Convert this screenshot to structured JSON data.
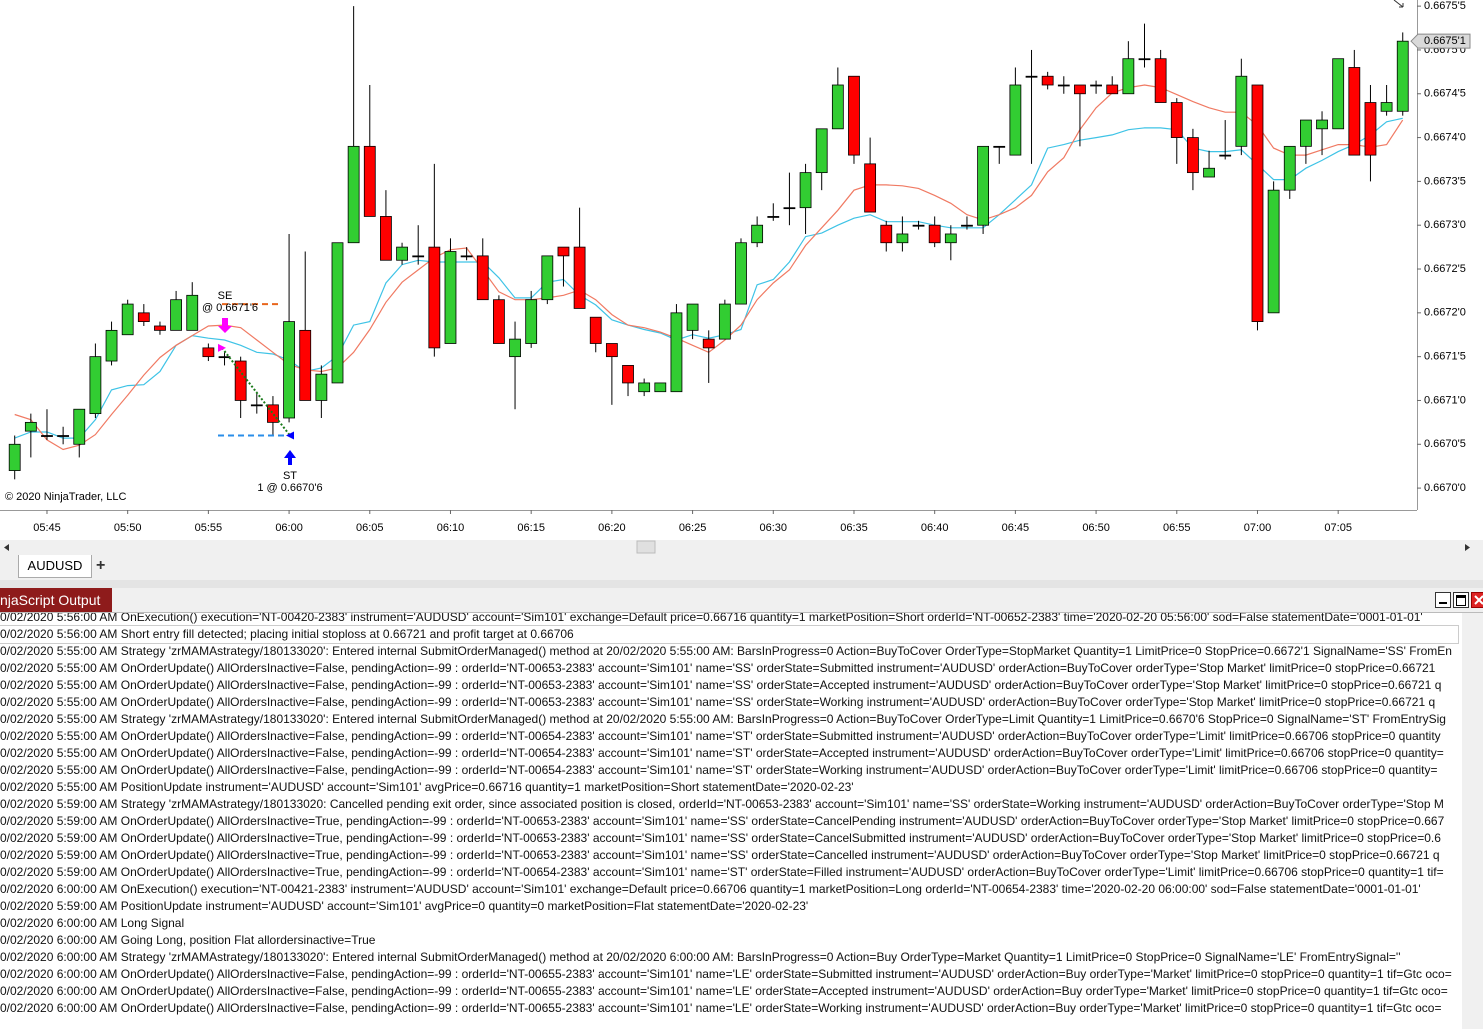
{
  "chart_data": {
    "type": "candlestick",
    "copyright": "© 2020 NinjaTrader, LLC",
    "categories": [
      null,
      null,
      "05:45",
      null,
      null,
      null,
      null,
      "05:50",
      null,
      null,
      null,
      null,
      "05:55",
      null,
      null,
      null,
      null,
      "06:00",
      null,
      null,
      null,
      null,
      "06:05",
      null,
      null,
      null,
      null,
      "06:10",
      null,
      null,
      null,
      null,
      "06:15",
      null,
      null,
      null,
      null,
      "06:20",
      null,
      null,
      null,
      null,
      "06:25",
      null,
      null,
      null,
      null,
      "06:30",
      null,
      null,
      null,
      null,
      "06:35",
      null,
      null,
      null,
      null,
      "06:40",
      null,
      null,
      null,
      null,
      "06:45",
      null,
      null,
      null,
      null,
      "06:50",
      null,
      null,
      null,
      null,
      "06:55",
      null,
      null,
      null,
      null,
      "07:00",
      null,
      null,
      null,
      null,
      "07:05",
      null,
      null,
      null,
      null
    ],
    "open": [
      0.66702,
      0.667065,
      0.66706,
      0.66706,
      0.66705,
      0.667085,
      0.667145,
      0.667175,
      0.6672,
      0.667185,
      0.66718,
      0.66718,
      0.66716,
      0.66715,
      0.667145,
      0.667095,
      0.667095,
      0.66708,
      0.66718,
      0.6671,
      0.66712,
      0.66728,
      0.66739,
      0.66731,
      0.66726,
      0.667265,
      0.667275,
      0.667165,
      0.667265,
      0.667265,
      0.667215,
      0.66715,
      0.667165,
      0.667215,
      0.667275,
      0.667275,
      0.667195,
      0.667165,
      0.66714,
      0.66711,
      0.66711,
      0.66711,
      0.66718,
      0.66717,
      0.66717,
      0.66721,
      0.66728,
      0.66731,
      0.66732,
      0.66732,
      0.66736,
      0.66741,
      0.66747,
      0.66737,
      0.6673,
      0.66728,
      0.6673,
      0.6673,
      0.66728,
      0.6673,
      0.6673,
      0.66739,
      0.66738,
      0.66747,
      0.66747,
      0.66746,
      0.66746,
      0.66746,
      0.66746,
      0.66745,
      0.66749,
      0.66749,
      0.66744,
      0.6674,
      0.667355,
      0.66738,
      0.66739,
      0.66746,
      0.6672,
      0.66734,
      0.66739,
      0.66741,
      0.66741,
      0.66748,
      0.66744,
      0.66743,
      0.66743
    ],
    "high": [
      0.66706,
      0.667085,
      0.66709,
      0.66707,
      0.66709,
      0.667165,
      0.66719,
      0.667215,
      0.66721,
      0.66719,
      0.667225,
      0.667235,
      0.667165,
      0.667155,
      0.66715,
      0.66711,
      0.667105,
      0.66729,
      0.66727,
      0.66714,
      0.66728,
      0.66755,
      0.66746,
      0.66734,
      0.66728,
      0.6673,
      0.66737,
      0.667285,
      0.667275,
      0.667285,
      0.66722,
      0.66719,
      0.667225,
      0.667265,
      0.667275,
      0.66732,
      0.667195,
      0.667165,
      0.66714,
      0.667125,
      0.66712,
      0.66721,
      0.66721,
      0.66718,
      0.667215,
      0.667285,
      0.66731,
      0.667325,
      0.66736,
      0.66737,
      0.66741,
      0.66748,
      0.66747,
      0.6674,
      0.667305,
      0.66731,
      0.667305,
      0.66731,
      0.6673,
      0.66731,
      0.66739,
      0.66739,
      0.66748,
      0.6675,
      0.667475,
      0.66747,
      0.66746,
      0.667465,
      0.66747,
      0.66751,
      0.66753,
      0.6675,
      0.667445,
      0.66741,
      0.667385,
      0.66742,
      0.66749,
      0.66746,
      0.66735,
      0.66739,
      0.66742,
      0.66743,
      0.66749,
      0.6675,
      0.66746,
      0.66746,
      0.66752
    ],
    "low": [
      0.66701,
      0.667035,
      0.667055,
      0.66705,
      0.667035,
      0.66708,
      0.66714,
      0.667175,
      0.667185,
      0.667175,
      0.66718,
      0.66718,
      0.667145,
      0.66714,
      0.66708,
      0.667085,
      0.66706,
      0.667075,
      0.6671,
      0.66708,
      0.66712,
      0.66728,
      0.66731,
      0.66726,
      0.667255,
      0.667255,
      0.66715,
      0.667165,
      0.66726,
      0.667215,
      0.667165,
      0.66709,
      0.66716,
      0.66721,
      0.66723,
      0.667205,
      0.667155,
      0.667095,
      0.667105,
      0.667105,
      0.66711,
      0.66711,
      0.66717,
      0.66712,
      0.66717,
      0.66721,
      0.667275,
      0.667305,
      0.6673,
      0.66729,
      0.66734,
      0.66741,
      0.66737,
      0.667315,
      0.66727,
      0.66727,
      0.667295,
      0.667275,
      0.66726,
      0.667295,
      0.66729,
      0.66737,
      0.66738,
      0.66737,
      0.667455,
      0.66745,
      0.66739,
      0.66745,
      0.66745,
      0.66745,
      0.66748,
      0.66744,
      0.66737,
      0.66734,
      0.667355,
      0.667375,
      0.66738,
      0.66718,
      0.6672,
      0.66733,
      0.66737,
      0.66738,
      0.66741,
      0.66738,
      0.66735,
      0.667425,
      0.667425
    ],
    "close": [
      0.66705,
      0.667075,
      0.66706,
      0.66706,
      0.66709,
      0.66715,
      0.66718,
      0.66721,
      0.66719,
      0.66718,
      0.667215,
      0.66722,
      0.66715,
      0.66715,
      0.6671,
      0.667095,
      0.667075,
      0.66719,
      0.6671,
      0.66713,
      0.66728,
      0.66739,
      0.66731,
      0.66726,
      0.667275,
      0.667265,
      0.66716,
      0.66727,
      0.667265,
      0.667215,
      0.667165,
      0.66717,
      0.667215,
      0.667265,
      0.667265,
      0.667205,
      0.667165,
      0.66715,
      0.66712,
      0.66712,
      0.66712,
      0.6672,
      0.66721,
      0.66716,
      0.66721,
      0.66728,
      0.6673,
      0.66731,
      0.66732,
      0.66736,
      0.66741,
      0.66746,
      0.66738,
      0.667315,
      0.66728,
      0.66729,
      0.6673,
      0.66728,
      0.66729,
      0.6673,
      0.66739,
      0.66739,
      0.66746,
      0.66747,
      0.66746,
      0.66746,
      0.66745,
      0.66746,
      0.66745,
      0.66749,
      0.66749,
      0.66744,
      0.6674,
      0.66736,
      0.667365,
      0.66738,
      0.66747,
      0.66719,
      0.66734,
      0.66739,
      0.66742,
      0.66742,
      0.66749,
      0.66738,
      0.66738,
      0.66744,
      0.66751
    ],
    "up_color": "#32cd32",
    "down_color": "#ff0000",
    "series": [
      {
        "color": "#3ec3e6",
        "values": [
          0.667057,
          0.667064,
          0.667064,
          0.667057,
          0.667057,
          0.667078,
          0.667112,
          0.667117,
          0.667118,
          0.667133,
          0.667163,
          0.667174,
          0.667171,
          0.667169,
          0.667163,
          0.667155,
          0.667153,
          0.667146,
          0.667133,
          0.667137,
          0.667151,
          0.667186,
          0.66719,
          0.667234,
          0.667255,
          0.66726,
          0.667258,
          0.667258,
          0.667258,
          0.667258,
          0.66724,
          0.667217,
          0.667217,
          0.667235,
          0.667238,
          0.66722,
          0.667209,
          0.667192,
          0.667186,
          0.667181,
          0.667177,
          0.667169,
          0.667175,
          0.667171,
          0.667175,
          0.667181,
          0.667232,
          0.667238,
          0.667258,
          0.667287,
          0.667291,
          0.6673,
          0.667308,
          0.667312,
          0.667304,
          0.667304,
          0.667304,
          0.6673,
          0.667297,
          0.667297,
          0.667297,
          0.667312,
          0.667329,
          0.667346,
          0.667388,
          0.667392,
          0.667397,
          0.6674,
          0.667403,
          0.667409,
          0.667411,
          0.667411,
          0.667409,
          0.667388,
          0.667384,
          0.667384,
          0.667386,
          0.667369,
          0.667352,
          0.667352,
          0.667365,
          0.667374,
          0.667384,
          0.667392,
          0.667403,
          0.667418,
          0.667422
        ]
      },
      {
        "color": "#f07a63",
        "values": [
          0.667084,
          0.667078,
          0.667055,
          0.667044,
          0.667049,
          0.667061,
          0.667084,
          0.667106,
          0.667129,
          0.667149,
          0.667163,
          0.667174,
          0.667185,
          0.667186,
          0.667183,
          0.667169,
          0.667155,
          0.667141,
          0.667135,
          0.667133,
          0.667137,
          0.667155,
          0.667181,
          0.667212,
          0.667235,
          0.667249,
          0.667263,
          0.667272,
          0.667274,
          0.667249,
          0.667224,
          0.667215,
          0.667215,
          0.667217,
          0.66722,
          0.667226,
          0.667215,
          0.667198,
          0.667186,
          0.667183,
          0.667178,
          0.667171,
          0.667163,
          0.667155,
          0.667169,
          0.667186,
          0.667215,
          0.667234,
          0.667249,
          0.667277,
          0.667297,
          0.667317,
          0.66734,
          0.667346,
          0.667346,
          0.667345,
          0.667342,
          0.667334,
          0.667325,
          0.667312,
          0.667306,
          0.667312,
          0.66732,
          0.667334,
          0.667361,
          0.667377,
          0.667409,
          0.667434,
          0.667451,
          0.667457,
          0.66746,
          0.667457,
          0.667449,
          0.667441,
          0.667434,
          0.667429,
          0.667429,
          0.667414,
          0.667388,
          0.66738,
          0.66738,
          0.667386,
          0.667392,
          0.667392,
          0.667389,
          0.667392,
          0.66742
        ]
      }
    ],
    "ylim": [
      0.666975,
      0.667557
    ],
    "yticks": [
      {
        "value": 0.66755,
        "label": "0.6675'5"
      },
      {
        "value": 0.6675,
        "label": "0.6675'0"
      },
      {
        "value": 0.66745,
        "label": "0.6674'5"
      },
      {
        "value": 0.6674,
        "label": "0.6674'0"
      },
      {
        "value": 0.66735,
        "label": "0.6673'5"
      },
      {
        "value": 0.6673,
        "label": "0.6673'0"
      },
      {
        "value": 0.66725,
        "label": "0.6672'5"
      },
      {
        "value": 0.6672,
        "label": "0.6672'0"
      },
      {
        "value": 0.66715,
        "label": "0.6671'5"
      },
      {
        "value": 0.6671,
        "label": "0.6671'0"
      },
      {
        "value": 0.66705,
        "label": "0.6670'5"
      },
      {
        "value": 0.667,
        "label": "0.6670'0"
      }
    ],
    "last_price": {
      "value": 0.66751,
      "label": "0.6675'1"
    },
    "entry": {
      "signal": "SE",
      "price": 0.66716,
      "label": "@ 0.6671'6"
    },
    "exit": {
      "signal": "ST",
      "price": 0.66706,
      "label": "1 @ 0.6670'6"
    },
    "stop_level": 0.66721,
    "target_level": 0.66706
  },
  "tabs": {
    "instrument": "AUDUSD",
    "add": "+"
  },
  "output": {
    "title": "njaScript Output",
    "lines": [
      "0/02/2020 5:56:00 AM OnExecution() execution='NT-00420-2383' instrument='AUDUSD' account='Sim101' exchange=Default price=0.66716 quantity=1 marketPosition=Short orderId='NT-00652-2383' time='2020-02-20 05:56:00' sod=False statementDate='0001-01-01'",
      "0/02/2020 5:56:00 AM Short entry fill detected; placing initial stoploss at 0.66721 and profit target at 0.66706",
      "0/02/2020 5:55:00 AM Strategy 'zrMAMAstrategy/180133020': Entered internal SubmitOrderManaged() method at 20/02/2020 5:55:00 AM: BarsInProgress=0 Action=BuyToCover OrderType=StopMarket Quantity=1 LimitPrice=0 StopPrice=0.6672'1 SignalName='SS' FromEn",
      "0/02/2020 5:55:00 AM OnOrderUpdate() AllOrdersInactive=False, pendingAction=-99 : orderId='NT-00653-2383' account='Sim101' name='SS' orderState=Submitted instrument='AUDUSD' orderAction=BuyToCover orderType='Stop Market' limitPrice=0 stopPrice=0.66721",
      "0/02/2020 5:55:00 AM OnOrderUpdate() AllOrdersInactive=False, pendingAction=-99 : orderId='NT-00653-2383' account='Sim101' name='SS' orderState=Accepted instrument='AUDUSD' orderAction=BuyToCover orderType='Stop Market' limitPrice=0 stopPrice=0.66721 q",
      "0/02/2020 5:55:00 AM OnOrderUpdate() AllOrdersInactive=False, pendingAction=-99 : orderId='NT-00653-2383' account='Sim101' name='SS' orderState=Working instrument='AUDUSD' orderAction=BuyToCover orderType='Stop Market' limitPrice=0 stopPrice=0.66721 q",
      "0/02/2020 5:55:00 AM Strategy 'zrMAMAstrategy/180133020': Entered internal SubmitOrderManaged() method at 20/02/2020 5:55:00 AM: BarsInProgress=0 Action=BuyToCover OrderType=Limit Quantity=1 LimitPrice=0.6670'6 StopPrice=0 SignalName='ST' FromEntrySig",
      "0/02/2020 5:55:00 AM OnOrderUpdate() AllOrdersInactive=False, pendingAction=-99 : orderId='NT-00654-2383' account='Sim101' name='ST' orderState=Submitted instrument='AUDUSD' orderAction=BuyToCover orderType='Limit' limitPrice=0.66706 stopPrice=0 quantity",
      "0/02/2020 5:55:00 AM OnOrderUpdate() AllOrdersInactive=False, pendingAction=-99 : orderId='NT-00654-2383' account='Sim101' name='ST' orderState=Accepted instrument='AUDUSD' orderAction=BuyToCover orderType='Limit' limitPrice=0.66706 stopPrice=0 quantity=",
      "0/02/2020 5:55:00 AM OnOrderUpdate() AllOrdersInactive=False, pendingAction=-99 : orderId='NT-00654-2383' account='Sim101' name='ST' orderState=Working instrument='AUDUSD' orderAction=BuyToCover orderType='Limit' limitPrice=0.66706 stopPrice=0 quantity=",
      "0/02/2020 5:55:00 AM PositionUpdate instrument='AUDUSD' account='Sim101' avgPrice=0.66716 quantity=1 marketPosition=Short statementDate='2020-02-23'",
      "0/02/2020 5:59:00 AM Strategy 'zrMAMAstrategy/180133020: Cancelled pending exit order, since associated position is closed, orderId='NT-00653-2383' account='Sim101' name='SS' orderState=Working instrument='AUDUSD' orderAction=BuyToCover orderType='Stop M",
      "0/02/2020 5:59:00 AM OnOrderUpdate() AllOrdersInactive=True, pendingAction=-99 : orderId='NT-00653-2383' account='Sim101' name='SS' orderState=CancelPending instrument='AUDUSD' orderAction=BuyToCover orderType='Stop Market' limitPrice=0 stopPrice=0.667",
      "0/02/2020 5:59:00 AM OnOrderUpdate() AllOrdersInactive=True, pendingAction=-99 : orderId='NT-00653-2383' account='Sim101' name='SS' orderState=CancelSubmitted instrument='AUDUSD' orderAction=BuyToCover orderType='Stop Market' limitPrice=0 stopPrice=0.6",
      "0/02/2020 5:59:00 AM OnOrderUpdate() AllOrdersInactive=True, pendingAction=-99 : orderId='NT-00653-2383' account='Sim101' name='SS' orderState=Cancelled instrument='AUDUSD' orderAction=BuyToCover orderType='Stop Market' limitPrice=0 stopPrice=0.66721 q",
      "0/02/2020 5:59:00 AM OnOrderUpdate() AllOrdersInactive=True, pendingAction=-99 : orderId='NT-00654-2383' account='Sim101' name='ST' orderState=Filled instrument='AUDUSD' orderAction=BuyToCover orderType='Limit' limitPrice=0.66706 stopPrice=0 quantity=1 tif=",
      "0/02/2020 6:00:00 AM OnExecution() execution='NT-00421-2383' instrument='AUDUSD' account='Sim101' exchange=Default price=0.66706 quantity=1 marketPosition=Long orderId='NT-00654-2383' time='2020-02-20 06:00:00' sod=False statementDate='0001-01-01'",
      "0/02/2020 5:59:00 AM PositionUpdate instrument='AUDUSD' account='Sim101' avgPrice=0 quantity=0 marketPosition=Flat statementDate='2020-02-23'",
      "0/02/2020 6:00:00 AM Long Signal",
      "0/02/2020 6:00:00 AM Going Long, position Flat allordersinactive=True",
      "0/02/2020 6:00:00 AM Strategy 'zrMAMAstrategy/180133020': Entered internal SubmitOrderManaged() method at 20/02/2020 6:00:00 AM: BarsInProgress=0 Action=Buy OrderType=Market Quantity=1 LimitPrice=0 StopPrice=0 SignalName='LE' FromEntrySignal=''",
      "0/02/2020 6:00:00 AM OnOrderUpdate() AllOrdersInactive=False, pendingAction=-99 : orderId='NT-00655-2383' account='Sim101' name='LE' orderState=Submitted instrument='AUDUSD' orderAction=Buy orderType='Market' limitPrice=0 stopPrice=0 quantity=1 tif=Gtc oco=",
      "0/02/2020 6:00:00 AM OnOrderUpdate() AllOrdersInactive=False, pendingAction=-99 : orderId='NT-00655-2383' account='Sim101' name='LE' orderState=Accepted instrument='AUDUSD' orderAction=Buy orderType='Market' limitPrice=0 stopPrice=0 quantity=1 tif=Gtc oco=",
      "0/02/2020 6:00:00 AM OnOrderUpdate() AllOrdersInactive=False, pendingAction=-99 : orderId='NT-00655-2383' account='Sim101' name='LE' orderState=Working instrument='AUDUSD' orderAction=Buy orderType='Market' limitPrice=0 stopPrice=0 quantity=1 tif=Gtc oco="
    ]
  }
}
